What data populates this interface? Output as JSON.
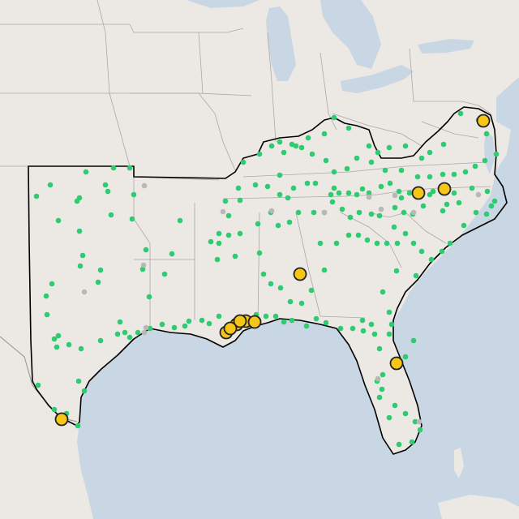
{
  "map": {
    "colors": {
      "land": "#ece8e3",
      "water": "#c9d7e4",
      "state_border": "#a9a9a9",
      "region_outline": "#000000",
      "minor_point": "#2ecc71",
      "inactive_point": "#b8b8b8",
      "major_point": "#f5c518",
      "major_point_outline": "#222222"
    },
    "legend": [],
    "point_groups": [
      {
        "key": "minor",
        "count_visible": 220
      },
      {
        "key": "inactive",
        "count_visible": 15
      },
      {
        "key": "major",
        "count_visible": 12
      }
    ]
  }
}
